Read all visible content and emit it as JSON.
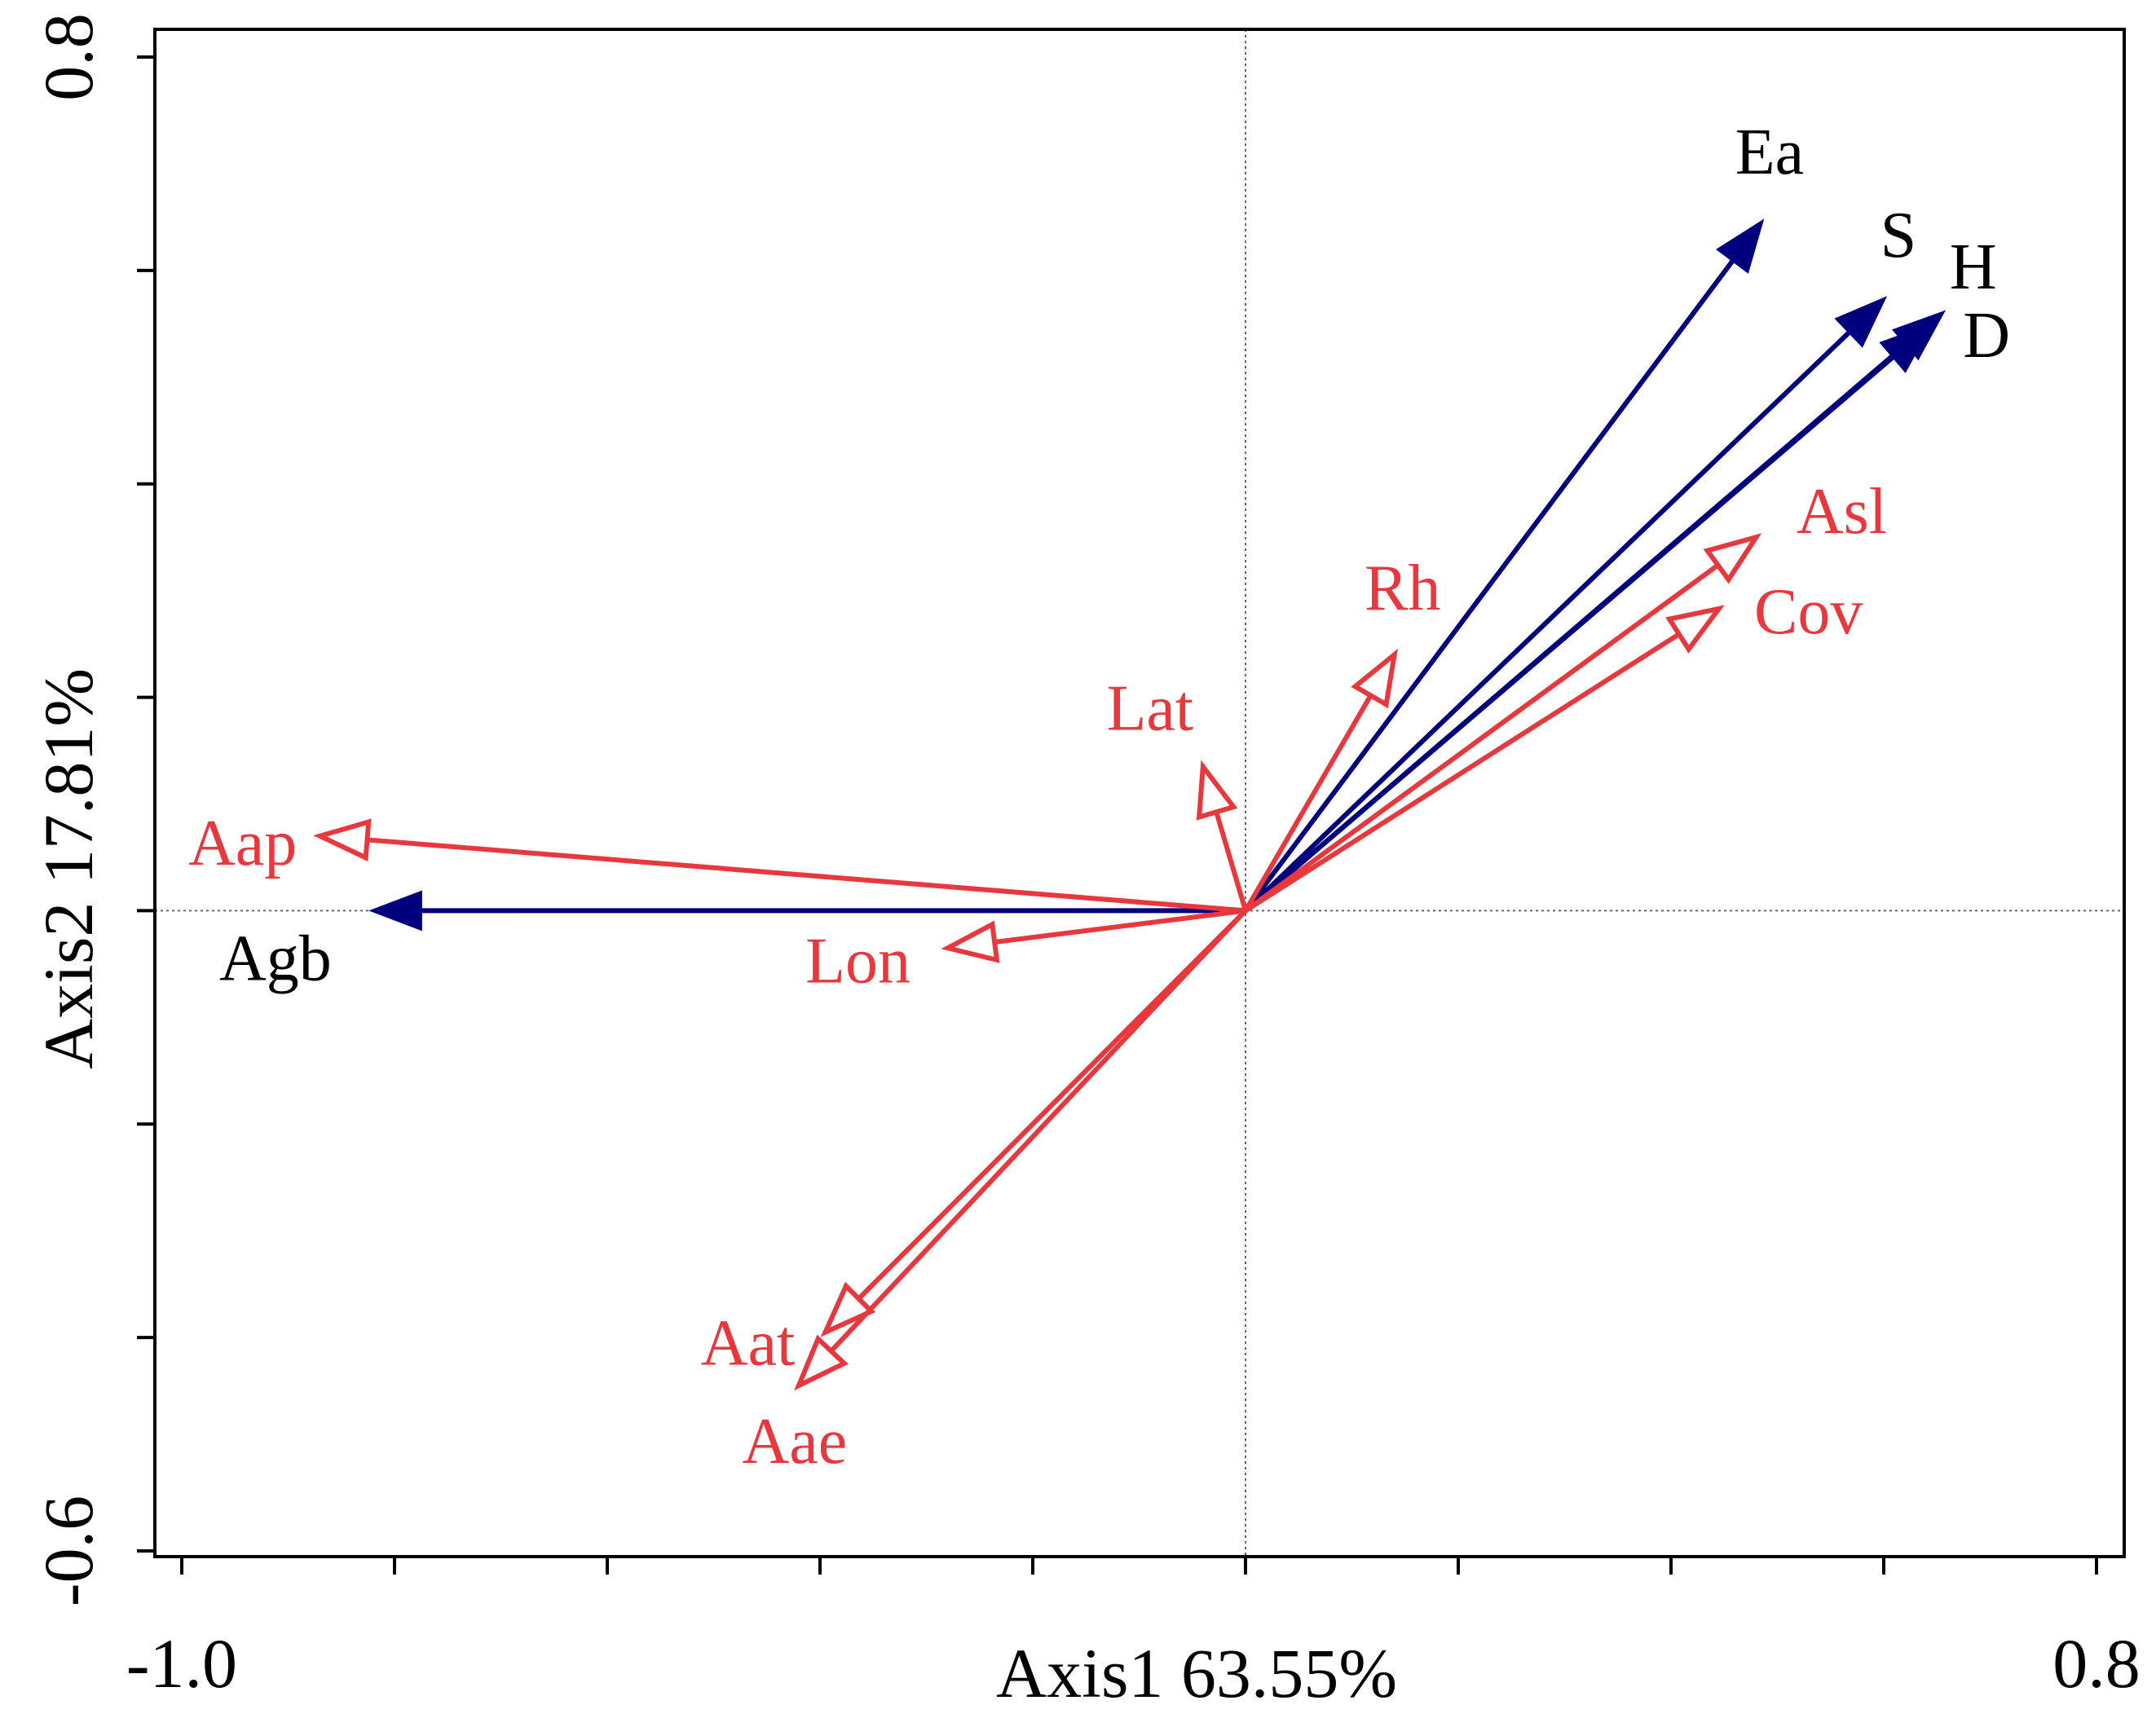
{
  "chart_data": {
    "type": "biplot",
    "xlabel": "Axis1 63.55%",
    "ylabel": "Axis2 17.81%",
    "xlim": [
      -1.0,
      0.8
    ],
    "ylim": [
      -0.6,
      0.8
    ],
    "x_tick_labels": [
      {
        "value": -1.0,
        "label": "-1.0"
      },
      {
        "value": 0.8,
        "label": "0.8"
      }
    ],
    "y_tick_labels": [
      {
        "value": 0.8,
        "label": "0.8"
      },
      {
        "value": -0.6,
        "label": "-0.6"
      }
    ],
    "x_ticks": [
      -1.0,
      -0.8,
      -0.6,
      -0.4,
      -0.2,
      0.0,
      0.2,
      0.4,
      0.6,
      0.8
    ],
    "y_ticks": [
      0.8,
      0.6,
      0.4,
      0.2,
      0.0,
      -0.2,
      -0.4,
      -0.6
    ],
    "series": [
      {
        "name": "response",
        "color": "#00007f",
        "arrow_style": "filled",
        "vectors": [
          {
            "label": "Ea",
            "x": 0.485,
            "y": 0.645
          },
          {
            "label": "S",
            "x": 0.6,
            "y": 0.573
          },
          {
            "label": "H",
            "x": 0.655,
            "y": 0.56
          },
          {
            "label": "D",
            "x": 0.643,
            "y": 0.548
          },
          {
            "label": "Agb",
            "x": -0.82,
            "y": 0.0
          }
        ]
      },
      {
        "name": "explanatory",
        "color": "#e8383d",
        "arrow_style": "open",
        "vectors": [
          {
            "label": "Asl",
            "x": 0.48,
            "y": 0.35
          },
          {
            "label": "Cov",
            "x": 0.445,
            "y": 0.283
          },
          {
            "label": "Rh",
            "x": 0.14,
            "y": 0.24
          },
          {
            "label": "Lat",
            "x": -0.04,
            "y": 0.135
          },
          {
            "label": "Aap",
            "x": -0.87,
            "y": 0.07
          },
          {
            "label": "Lon",
            "x": -0.28,
            "y": -0.035
          },
          {
            "label": "Aat",
            "x": -0.395,
            "y": -0.395
          },
          {
            "label": "Aae",
            "x": -0.42,
            "y": -0.445
          }
        ]
      }
    ]
  }
}
